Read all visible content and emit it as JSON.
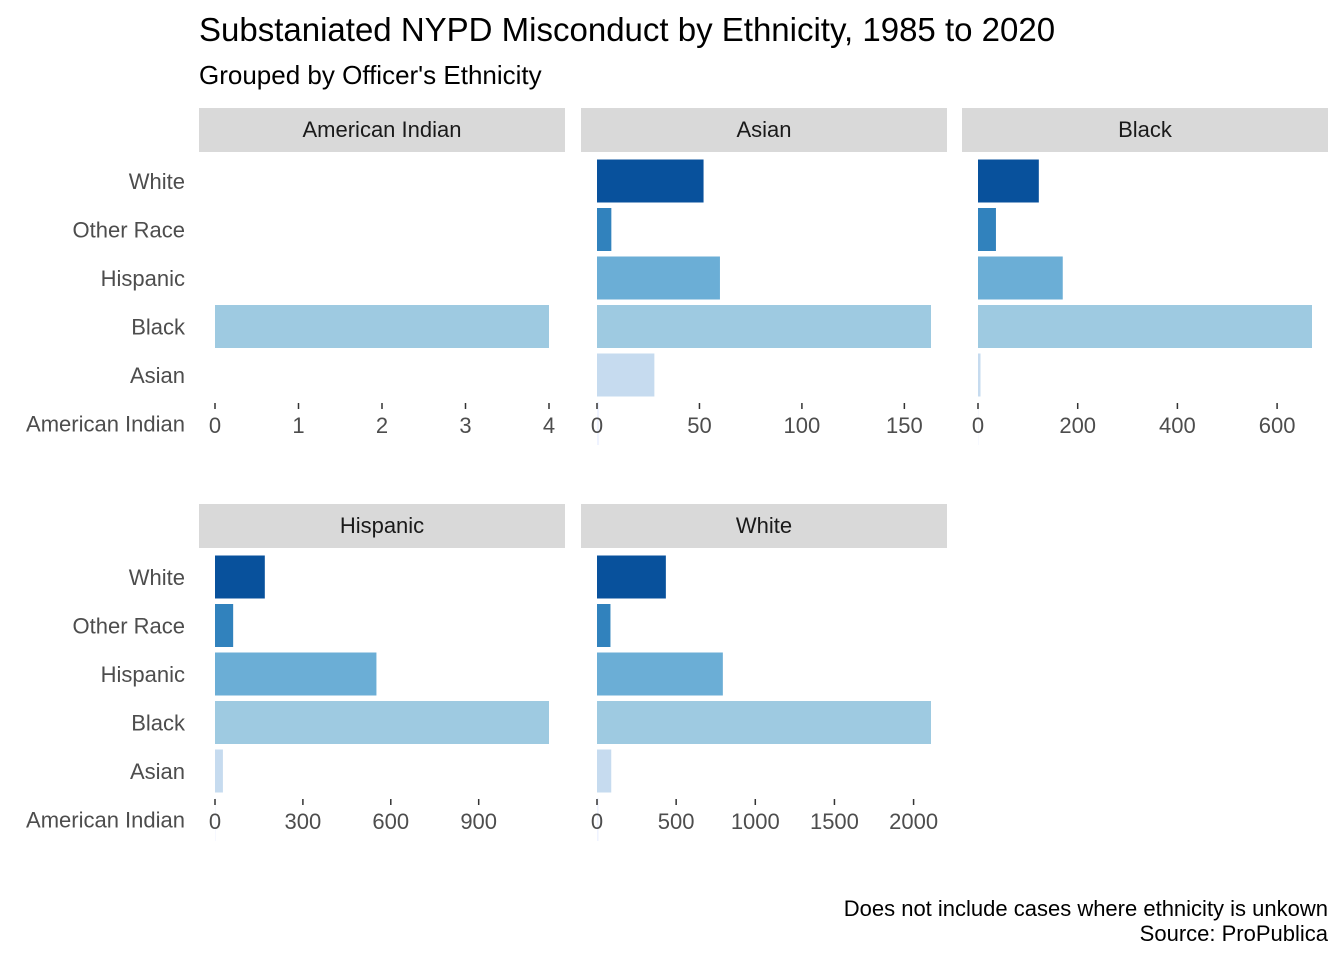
{
  "chart_data": {
    "type": "bar",
    "orientation": "horizontal",
    "title": "Substaniated NYPD Misconduct by Ethnicity, 1985 to 2020",
    "subtitle": "Grouped by Officer's Ethnicity",
    "caption": [
      "Does not include cases where ethnicity is unkown",
      "Source: ProPublica"
    ],
    "categories": [
      "American Indian",
      "Asian",
      "Black",
      "Hispanic",
      "Other Race",
      "White"
    ],
    "colors": {
      "American Indian": "#eff3ff",
      "Asian": "#c6dbef",
      "Black": "#9ecae1",
      "Hispanic": "#6baed6",
      "Other Race": "#3182bd",
      "White": "#08519c"
    },
    "strip_color": "#d9d9d9",
    "grid": false,
    "scales": "free_x",
    "facets": [
      {
        "name": "American Indian",
        "values": {
          "American Indian": 0,
          "Asian": 0,
          "Black": 4,
          "Hispanic": 0,
          "Other Race": 0,
          "White": 0
        },
        "xticks": [
          0,
          1,
          2,
          3,
          4
        ],
        "xlim": [
          0,
          4
        ]
      },
      {
        "name": "Asian",
        "values": {
          "American Indian": 1,
          "Asian": 28,
          "Black": 163,
          "Hispanic": 60,
          "Other Race": 7,
          "White": 52
        },
        "xticks": [
          0,
          50,
          100,
          150
        ],
        "xlim": [
          0,
          163
        ]
      },
      {
        "name": "Black",
        "values": {
          "American Indian": 1,
          "Asian": 5,
          "Black": 670,
          "Hispanic": 170,
          "Other Race": 36,
          "White": 122
        },
        "xticks": [
          0,
          200,
          400,
          600
        ],
        "xlim": [
          0,
          670
        ]
      },
      {
        "name": "Hispanic",
        "values": {
          "American Indian": 2,
          "Asian": 27,
          "Black": 1140,
          "Hispanic": 551,
          "Other Race": 62,
          "White": 170
        },
        "xticks": [
          0,
          300,
          600,
          900
        ],
        "xlim": [
          0,
          1140
        ]
      },
      {
        "name": "White",
        "values": {
          "American Indian": 10,
          "Asian": 90,
          "Black": 2110,
          "Hispanic": 795,
          "Other Race": 85,
          "White": 435
        },
        "xticks": [
          0,
          500,
          1000,
          1500,
          2000
        ],
        "xlim": [
          0,
          2110
        ]
      }
    ]
  }
}
